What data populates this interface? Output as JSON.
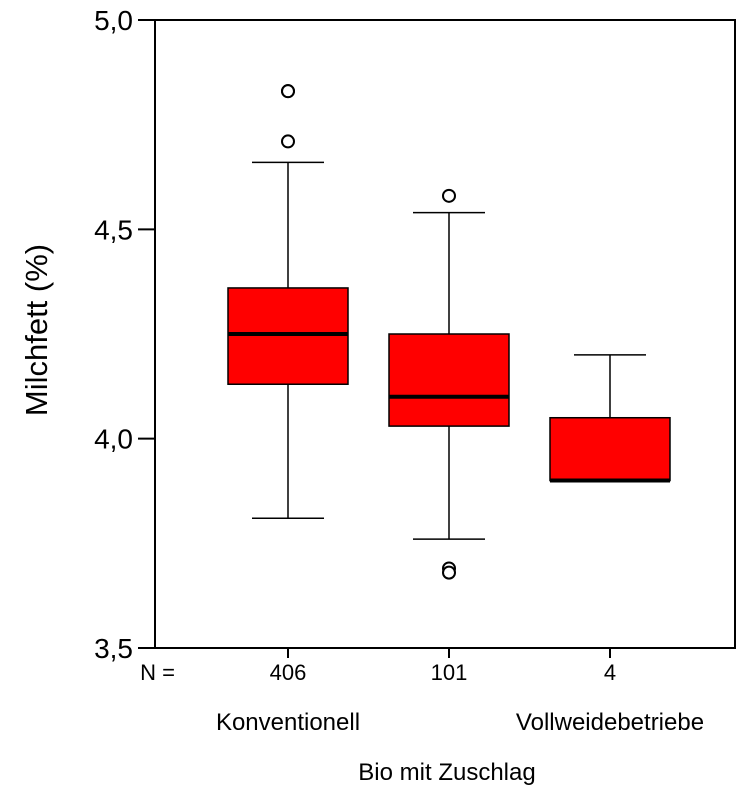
{
  "chart_data": {
    "type": "boxplot",
    "title": "",
    "ylabel": "Milchfett (%)",
    "xlabel": "Bio mit Zuschlag",
    "ylim": [
      3.5,
      5.0
    ],
    "yticks": [
      {
        "value": 3.5,
        "label": "3,5"
      },
      {
        "value": 4.0,
        "label": "4,0"
      },
      {
        "value": 4.5,
        "label": "4,5"
      },
      {
        "value": 5.0,
        "label": "5,0"
      }
    ],
    "n_prefix": "N =",
    "grid": false,
    "legend": "none",
    "box_color": "#ff0000",
    "groups": [
      {
        "n": "406",
        "label": "Konventionell",
        "whisker_low": 3.81,
        "q1": 4.13,
        "median": 4.25,
        "q3": 4.36,
        "whisker_high": 4.66,
        "outliers": [
          4.83,
          4.83,
          4.71
        ]
      },
      {
        "n": "101",
        "label": "",
        "whisker_low": 3.76,
        "q1": 4.03,
        "median": 4.1,
        "q3": 4.25,
        "whisker_high": 4.54,
        "outliers": [
          4.58,
          3.69,
          3.68
        ]
      },
      {
        "n": "4",
        "label": "Vollweidebetriebe",
        "whisker_low": 3.9,
        "q1": 3.9,
        "median": 3.9,
        "q3": 4.05,
        "whisker_high": 4.2,
        "outliers": []
      }
    ]
  }
}
